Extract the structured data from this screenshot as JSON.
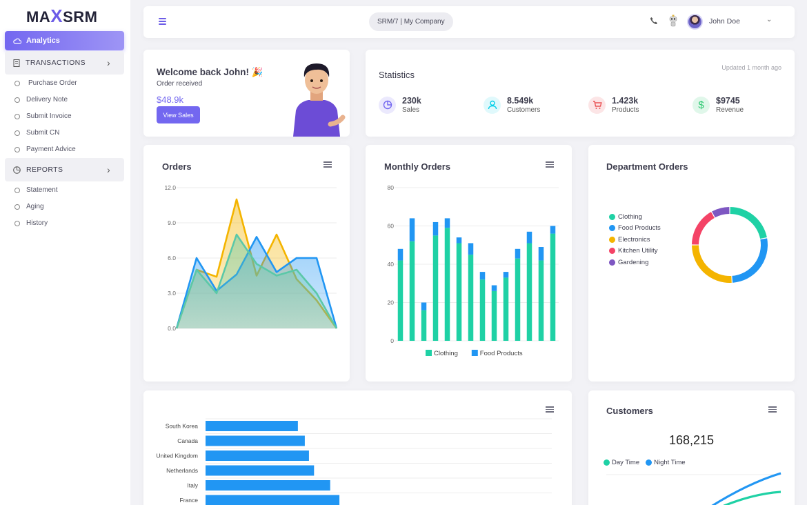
{
  "brand": {
    "logo_left": "MA",
    "logo_x": "X",
    "logo_right": "SRM"
  },
  "sidebar": {
    "active": "Analytics",
    "groups": [
      {
        "label": "TRANSACTIONS",
        "items": [
          "Purchase Order",
          "Delivery Note",
          "Submit Invoice",
          "Submit CN",
          "Payment Advice"
        ]
      },
      {
        "label": "REPORTS",
        "items": [
          "Statement",
          "Aging",
          "History"
        ]
      }
    ]
  },
  "topbar": {
    "company": "SRM/7 | My Company",
    "user": "John Doe"
  },
  "welcome": {
    "title": "Welcome back John! 🎉",
    "subtitle": "Order received",
    "amount": "$48.9k",
    "button": "View Sales"
  },
  "statistics": {
    "title": "Statistics",
    "updated": "Updated 1 month ago",
    "items": [
      {
        "value": "230k",
        "label": "Sales",
        "icon": "pie-chart-icon",
        "color": "#7367f0",
        "bg": "#ebe9fd"
      },
      {
        "value": "8.549k",
        "label": "Customers",
        "icon": "user-icon",
        "color": "#00cfe8",
        "bg": "#e0f9fc"
      },
      {
        "value": "1.423k",
        "label": "Products",
        "icon": "cart-icon",
        "color": "#ea5455",
        "bg": "#fce5e6"
      },
      {
        "value": "$9745",
        "label": "Revenue",
        "icon": "dollar-icon",
        "color": "#28c76f",
        "bg": "#e0f7ea"
      }
    ]
  },
  "orders": {
    "title": "Orders"
  },
  "monthly": {
    "title": "Monthly Orders"
  },
  "department": {
    "title": "Department Orders"
  },
  "customers": {
    "title": "Customers",
    "total": "168,215",
    "legend": [
      "Day Time",
      "Night Time"
    ]
  },
  "chart_data": [
    {
      "type": "area",
      "title": "Orders",
      "ylim": [
        0,
        12
      ],
      "yticks": [
        "0.0",
        "3.0",
        "6.0",
        "9.0",
        "12.0"
      ],
      "x": [
        0,
        1,
        2,
        3,
        4,
        5,
        6,
        7,
        8
      ],
      "series": [
        {
          "values": [
            0,
            5,
            4.4,
            11,
            4.5,
            8,
            4.2,
            2.4,
            0
          ],
          "color": "#f4b400"
        },
        {
          "values": [
            0,
            6,
            3.2,
            4.6,
            7.8,
            4.8,
            6,
            6,
            0
          ],
          "color": "#2196f3"
        },
        {
          "values": [
            0,
            5,
            3,
            8,
            5.5,
            4.5,
            5,
            3,
            0
          ],
          "color": "#5bc8a8"
        }
      ]
    },
    {
      "type": "bar",
      "stacked": true,
      "title": "Monthly Orders",
      "ylim": [
        0,
        80
      ],
      "yticks": [
        "0",
        "20",
        "40",
        "60",
        "80"
      ],
      "series": [
        {
          "name": "Clothing",
          "color": "#1fd1a5",
          "values": [
            42,
            52,
            16,
            55,
            59,
            51,
            45,
            32,
            26,
            33,
            43,
            51,
            42,
            56
          ]
        },
        {
          "name": "Food Products",
          "color": "#2196f3",
          "values": [
            6,
            12,
            4,
            7,
            5,
            3,
            6,
            4,
            3,
            3,
            5,
            6,
            7,
            4
          ]
        }
      ]
    },
    {
      "type": "pie",
      "title": "Department Orders",
      "categories": [
        "Clothing",
        "Food Products",
        "Electronics",
        "Kitchen Utility",
        "Gardening"
      ],
      "colors": [
        "#1fd1a5",
        "#2196f3",
        "#f4b400",
        "#f44366",
        "#7e57c2"
      ],
      "values": [
        22,
        27,
        26,
        17,
        8
      ]
    },
    {
      "type": "bar",
      "orientation": "horizontal",
      "categories": [
        "South Korea",
        "Canada",
        "United Kingdom",
        "Netherlands",
        "Italy",
        "France"
      ],
      "values": [
        400,
        430,
        448,
        470,
        540,
        580
      ],
      "xlim": [
        0,
        1500
      ],
      "color": "#2196f3"
    },
    {
      "type": "line",
      "title": "Customers",
      "series": [
        {
          "name": "Day Time",
          "color": "#1fd1a5"
        },
        {
          "name": "Night Time",
          "color": "#2196f3"
        }
      ]
    }
  ]
}
